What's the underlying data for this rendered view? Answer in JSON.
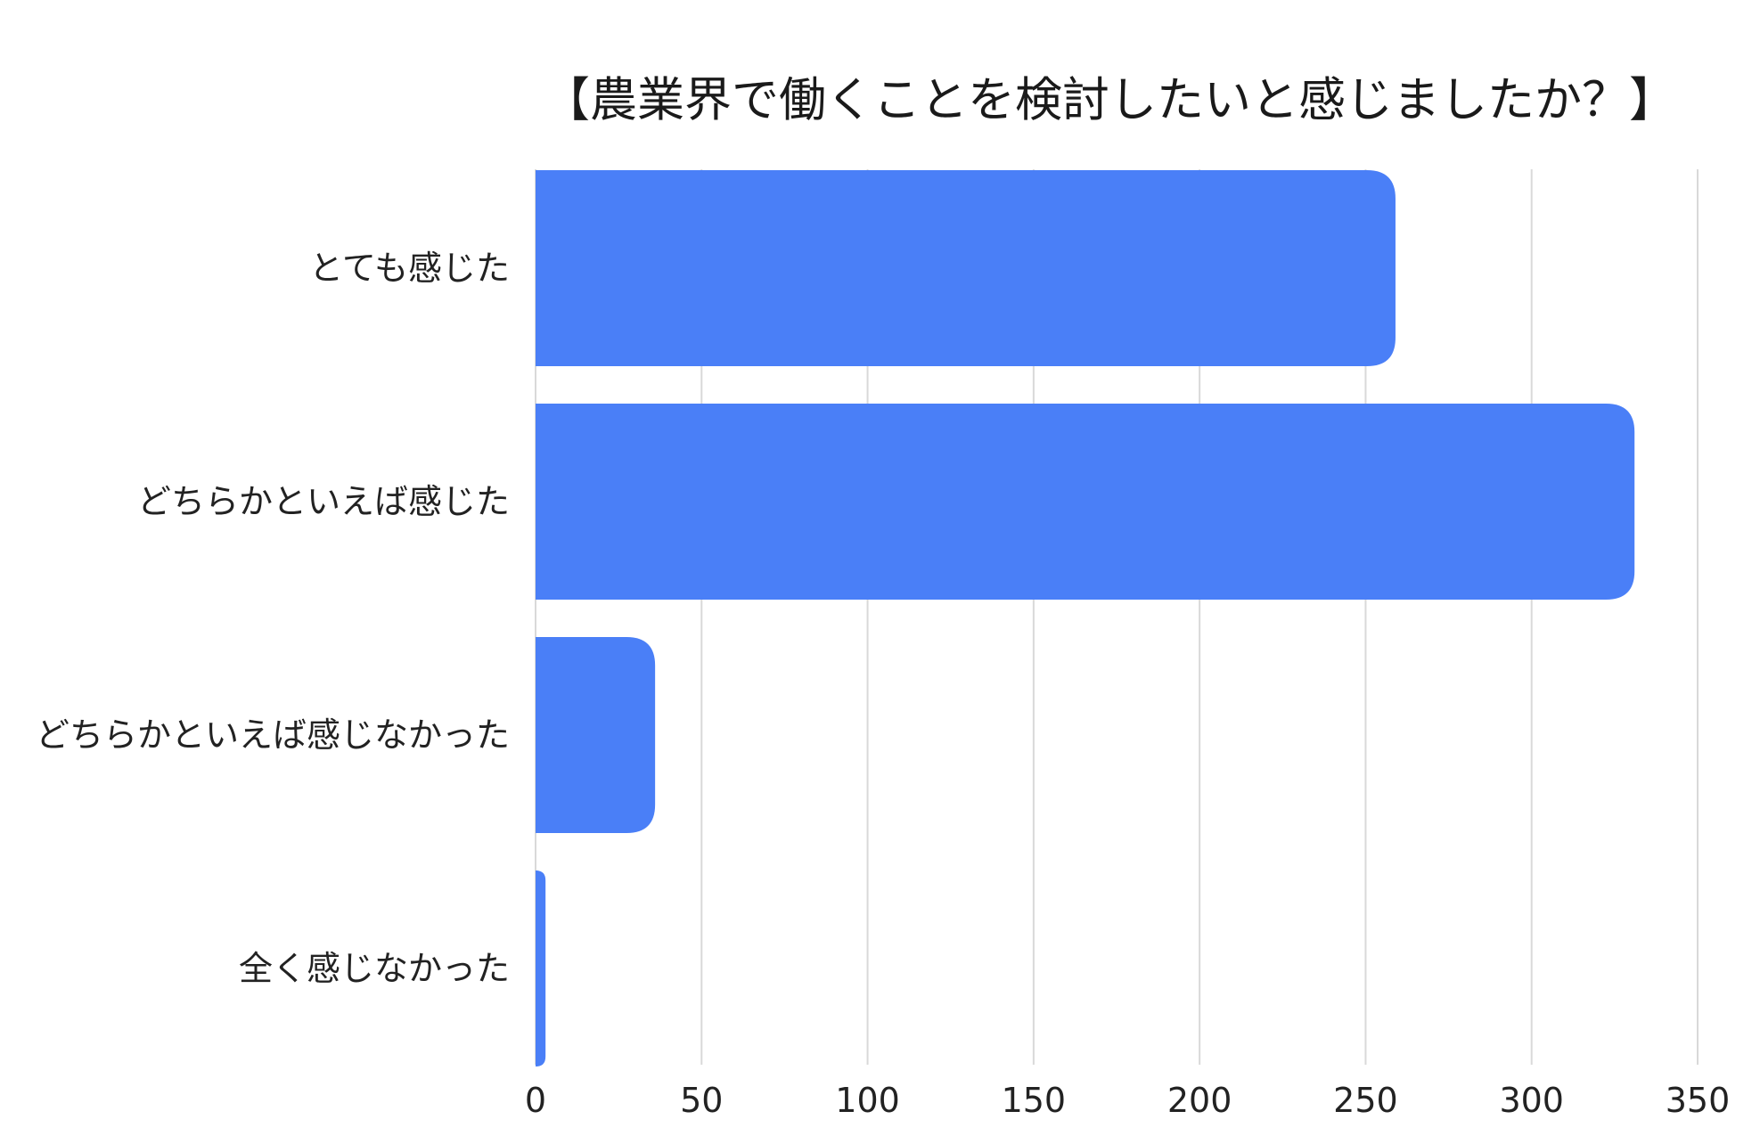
{
  "colors": {
    "bar": "#4a7ff7",
    "grid": "#d9d9d9",
    "text": "#222222",
    "background": "#ffffff"
  },
  "chart_data": {
    "type": "bar",
    "orientation": "horizontal",
    "title": "【農業界で働くことを検討したいと感じましたか？】",
    "xlabel": "",
    "ylabel": "",
    "categories": [
      "とても感じた",
      "どちらかといえば感じた",
      "どちらかといえば感じなかった",
      "全く感じなかった"
    ],
    "values": [
      259,
      331,
      36,
      3
    ],
    "xlim": [
      0,
      350
    ],
    "xticks": [
      "0",
      "50",
      "100",
      "150",
      "200",
      "250",
      "300",
      "350"
    ],
    "grid": true,
    "legend": "none"
  }
}
